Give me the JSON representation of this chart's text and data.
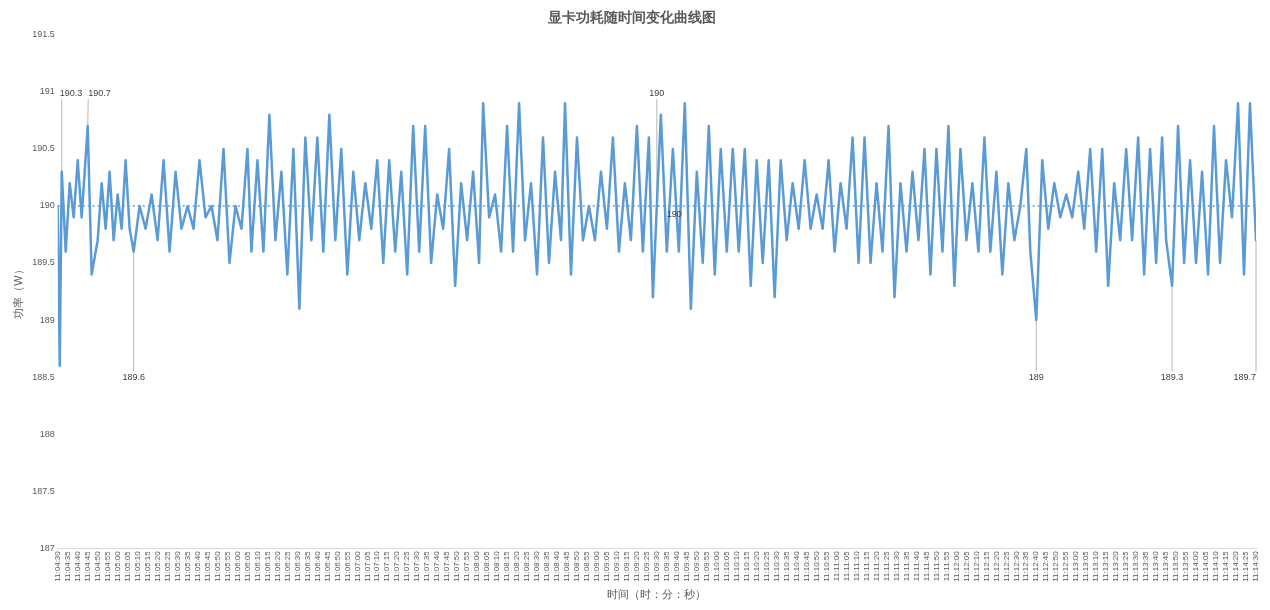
{
  "chart_data": {
    "type": "line",
    "title": "显卡功耗随时间变化曲线图",
    "xlabel": "时间（时：分：秒）",
    "ylabel": "功率（W）",
    "color": "#5b9bd5",
    "marker": "none",
    "line_style": "solid",
    "legend": false,
    "grid": false,
    "x": [
      11.075,
      11.07528,
      11.07556,
      11.07611,
      11.07667,
      11.07722,
      11.07778,
      11.07833,
      11.07917,
      11.07972,
      11.08056,
      11.08111,
      11.08167,
      11.08222,
      11.08278,
      11.08333,
      11.08389,
      11.08444,
      11.085,
      11.08556,
      11.08639,
      11.08722,
      11.08806,
      11.08889,
      11.08972,
      11.09056,
      11.09139,
      11.09222,
      11.09306,
      11.09389,
      11.09472,
      11.09556,
      11.09639,
      11.09722,
      11.09806,
      11.09889,
      11.09972,
      11.10056,
      11.10139,
      11.10194,
      11.10278,
      11.10361,
      11.10444,
      11.10528,
      11.10611,
      11.10694,
      11.10778,
      11.10861,
      11.10944,
      11.11028,
      11.11111,
      11.11194,
      11.11278,
      11.11361,
      11.11444,
      11.11528,
      11.11611,
      11.11694,
      11.11778,
      11.11861,
      11.11944,
      11.12028,
      11.12111,
      11.12194,
      11.12278,
      11.12361,
      11.12444,
      11.12528,
      11.12611,
      11.12694,
      11.12778,
      11.12861,
      11.12944,
      11.13028,
      11.13111,
      11.13194,
      11.13278,
      11.13361,
      11.13417,
      11.135,
      11.13583,
      11.13667,
      11.1375,
      11.13833,
      11.13917,
      11.14,
      11.14083,
      11.14167,
      11.1425,
      11.14333,
      11.14417,
      11.145,
      11.14556,
      11.14639,
      11.14722,
      11.14806,
      11.14889,
      11.14972,
      11.15056,
      11.15139,
      11.15222,
      11.15306,
      11.15389,
      11.15472,
      11.15556,
      11.15639,
      11.15722,
      11.15778,
      11.15833,
      11.15889,
      11.15972,
      11.16056,
      11.16139,
      11.16222,
      11.16306,
      11.16389,
      11.16472,
      11.16556,
      11.16639,
      11.16722,
      11.16806,
      11.16889,
      11.16972,
      11.17056,
      11.17139,
      11.17222,
      11.17306,
      11.17389,
      11.17472,
      11.17556,
      11.17639,
      11.17722,
      11.17806,
      11.17889,
      11.17972,
      11.18056,
      11.18139,
      11.18222,
      11.18306,
      11.18389,
      11.18472,
      11.18556,
      11.18639,
      11.18722,
      11.18806,
      11.18889,
      11.18972,
      11.19056,
      11.19139,
      11.19222,
      11.19306,
      11.19389,
      11.19472,
      11.19556,
      11.19639,
      11.19722,
      11.19806,
      11.19889,
      11.19972,
      11.20056,
      11.20139,
      11.20222,
      11.20306,
      11.20389,
      11.20472,
      11.20556,
      11.20639,
      11.20722,
      11.20806,
      11.20889,
      11.20972,
      11.21028,
      11.21111,
      11.21194,
      11.21278,
      11.21361,
      11.21444,
      11.21528,
      11.21611,
      11.21694,
      11.21778,
      11.21861,
      11.21944,
      11.22028,
      11.22111,
      11.22194,
      11.22278,
      11.22361,
      11.22444,
      11.22528,
      11.22611,
      11.22694,
      11.22778,
      11.22861,
      11.22917,
      11.23,
      11.23083,
      11.23167,
      11.2325,
      11.23333,
      11.23417,
      11.235,
      11.23583,
      11.23667,
      11.2375,
      11.23833,
      11.23917,
      11.24,
      11.24083,
      11.24167
    ],
    "values": [
      190.0,
      188.6,
      190.3,
      189.6,
      190.2,
      189.9,
      190.4,
      189.9,
      190.7,
      189.4,
      189.7,
      190.2,
      189.8,
      190.3,
      189.7,
      190.1,
      189.8,
      190.4,
      189.8,
      189.6,
      190.0,
      189.8,
      190.1,
      189.7,
      190.4,
      189.6,
      190.3,
      189.8,
      190.0,
      189.8,
      190.4,
      189.9,
      190.0,
      189.7,
      190.5,
      189.5,
      190.0,
      189.8,
      190.5,
      189.6,
      190.4,
      189.6,
      190.8,
      189.7,
      190.3,
      189.4,
      190.5,
      189.1,
      190.6,
      189.7,
      190.6,
      189.6,
      190.8,
      189.7,
      190.5,
      189.4,
      190.3,
      189.7,
      190.2,
      189.8,
      190.4,
      189.5,
      190.4,
      189.6,
      190.3,
      189.4,
      190.7,
      189.6,
      190.7,
      189.5,
      190.1,
      189.8,
      190.5,
      189.3,
      190.2,
      189.7,
      190.3,
      189.5,
      190.9,
      189.9,
      190.1,
      189.6,
      190.7,
      189.6,
      190.9,
      189.7,
      190.2,
      189.4,
      190.6,
      189.5,
      190.3,
      189.7,
      190.9,
      189.4,
      190.6,
      189.7,
      190.0,
      189.7,
      190.3,
      189.8,
      190.6,
      189.6,
      190.2,
      189.7,
      190.7,
      189.6,
      190.6,
      189.2,
      190.0,
      190.8,
      189.6,
      190.5,
      189.6,
      190.9,
      189.1,
      190.3,
      189.5,
      190.7,
      189.4,
      190.5,
      189.6,
      190.5,
      189.6,
      190.5,
      189.3,
      190.4,
      189.5,
      190.4,
      189.2,
      190.4,
      189.7,
      190.2,
      189.8,
      190.4,
      189.8,
      190.1,
      189.8,
      190.4,
      189.6,
      190.2,
      189.8,
      190.6,
      189.5,
      190.6,
      189.5,
      190.2,
      189.6,
      190.7,
      189.2,
      190.2,
      189.6,
      190.3,
      189.7,
      190.5,
      189.4,
      190.5,
      189.6,
      190.7,
      189.3,
      190.5,
      189.7,
      190.2,
      189.6,
      190.6,
      189.6,
      190.3,
      189.4,
      190.2,
      189.7,
      190.0,
      190.5,
      189.6,
      189.0,
      190.4,
      189.8,
      190.2,
      189.9,
      190.1,
      189.9,
      190.3,
      189.8,
      190.5,
      189.6,
      190.5,
      189.3,
      190.2,
      189.7,
      190.5,
      189.7,
      190.6,
      189.4,
      190.5,
      189.5,
      190.6,
      189.7,
      189.3,
      190.7,
      189.5,
      190.4,
      189.5,
      190.3,
      189.4,
      190.7,
      189.5,
      190.4,
      189.9,
      190.9,
      189.4,
      190.9,
      189.7
    ],
    "ylim": [
      187,
      191.5
    ],
    "yticks": [
      187,
      187.5,
      188,
      188.5,
      189,
      189.5,
      190,
      190.5,
      191,
      191.5
    ],
    "xlim": [
      11.075,
      11.24167
    ],
    "xticks": [
      {
        "value": 11.075,
        "label": "11:04:30"
      },
      {
        "value": 11.07639,
        "label": "11:04:35"
      },
      {
        "value": 11.07778,
        "label": "11:04:40"
      },
      {
        "value": 11.07917,
        "label": "11:04:45"
      },
      {
        "value": 11.08056,
        "label": "11:04:50"
      },
      {
        "value": 11.08194,
        "label": "11:04:55"
      },
      {
        "value": 11.08333,
        "label": "11:05:00"
      },
      {
        "value": 11.08472,
        "label": "11:05:05"
      },
      {
        "value": 11.08611,
        "label": "11:05:10"
      },
      {
        "value": 11.0875,
        "label": "11:05:15"
      },
      {
        "value": 11.08889,
        "label": "11:05:20"
      },
      {
        "value": 11.09028,
        "label": "11:05:25"
      },
      {
        "value": 11.09167,
        "label": "11:05:30"
      },
      {
        "value": 11.09306,
        "label": "11:05:35"
      },
      {
        "value": 11.09444,
        "label": "11:05:40"
      },
      {
        "value": 11.09583,
        "label": "11:05:45"
      },
      {
        "value": 11.09722,
        "label": "11:05:50"
      },
      {
        "value": 11.09861,
        "label": "11:05:55"
      },
      {
        "value": 11.1,
        "label": "11:06:00"
      },
      {
        "value": 11.10139,
        "label": "11:06:05"
      },
      {
        "value": 11.10278,
        "label": "11:06:10"
      },
      {
        "value": 11.10417,
        "label": "11:06:15"
      },
      {
        "value": 11.10556,
        "label": "11:06:20"
      },
      {
        "value": 11.10694,
        "label": "11:06:25"
      },
      {
        "value": 11.10833,
        "label": "11:06:30"
      },
      {
        "value": 11.10972,
        "label": "11:06:35"
      },
      {
        "value": 11.11111,
        "label": "11:06:40"
      },
      {
        "value": 11.1125,
        "label": "11:06:45"
      },
      {
        "value": 11.11389,
        "label": "11:06:50"
      },
      {
        "value": 11.11528,
        "label": "11:06:55"
      },
      {
        "value": 11.11667,
        "label": "11:07:00"
      },
      {
        "value": 11.11806,
        "label": "11:07:05"
      },
      {
        "value": 11.11944,
        "label": "11:07:10"
      },
      {
        "value": 11.12083,
        "label": "11:07:15"
      },
      {
        "value": 11.12222,
        "label": "11:07:20"
      },
      {
        "value": 11.12361,
        "label": "11:07:25"
      },
      {
        "value": 11.125,
        "label": "11:07:30"
      },
      {
        "value": 11.12639,
        "label": "11:07:35"
      },
      {
        "value": 11.12778,
        "label": "11:07:40"
      },
      {
        "value": 11.12917,
        "label": "11:07:45"
      },
      {
        "value": 11.13056,
        "label": "11:07:50"
      },
      {
        "value": 11.13194,
        "label": "11:07:55"
      },
      {
        "value": 11.13333,
        "label": "11:08:00"
      },
      {
        "value": 11.13472,
        "label": "11:08:05"
      },
      {
        "value": 11.13611,
        "label": "11:08:10"
      },
      {
        "value": 11.1375,
        "label": "11:08:15"
      },
      {
        "value": 11.13889,
        "label": "11:08:20"
      },
      {
        "value": 11.14028,
        "label": "11:08:25"
      },
      {
        "value": 11.14167,
        "label": "11:08:30"
      },
      {
        "value": 11.14306,
        "label": "11:08:35"
      },
      {
        "value": 11.14444,
        "label": "11:08:40"
      },
      {
        "value": 11.14583,
        "label": "11:08:45"
      },
      {
        "value": 11.14722,
        "label": "11:08:50"
      },
      {
        "value": 11.14861,
        "label": "11:08:55"
      },
      {
        "value": 11.15,
        "label": "11:09:00"
      },
      {
        "value": 11.15139,
        "label": "11:09:05"
      },
      {
        "value": 11.15278,
        "label": "11:09:10"
      },
      {
        "value": 11.15417,
        "label": "11:09:15"
      },
      {
        "value": 11.15556,
        "label": "11:09:20"
      },
      {
        "value": 11.15694,
        "label": "11:09:25"
      },
      {
        "value": 11.15833,
        "label": "11:09:30"
      },
      {
        "value": 11.15972,
        "label": "11:09:35"
      },
      {
        "value": 11.16111,
        "label": "11:09:40"
      },
      {
        "value": 11.1625,
        "label": "11:09:45"
      },
      {
        "value": 11.16389,
        "label": "11:09:50"
      },
      {
        "value": 11.16528,
        "label": "11:09:55"
      },
      {
        "value": 11.16667,
        "label": "11:10:00"
      },
      {
        "value": 11.16806,
        "label": "11:10:05"
      },
      {
        "value": 11.16944,
        "label": "11:10:10"
      },
      {
        "value": 11.17083,
        "label": "11:10:15"
      },
      {
        "value": 11.17222,
        "label": "11:10:20"
      },
      {
        "value": 11.17361,
        "label": "11:10:25"
      },
      {
        "value": 11.175,
        "label": "11:10:30"
      },
      {
        "value": 11.17639,
        "label": "11:10:35"
      },
      {
        "value": 11.17778,
        "label": "11:10:40"
      },
      {
        "value": 11.17917,
        "label": "11:10:45"
      },
      {
        "value": 11.18056,
        "label": "11:10:50"
      },
      {
        "value": 11.18194,
        "label": "11:10:55"
      },
      {
        "value": 11.18333,
        "label": "11:11:00"
      },
      {
        "value": 11.18472,
        "label": "11:11:05"
      },
      {
        "value": 11.18611,
        "label": "11:11:10"
      },
      {
        "value": 11.1875,
        "label": "11:11:15"
      },
      {
        "value": 11.18889,
        "label": "11:11:20"
      },
      {
        "value": 11.19028,
        "label": "11:11:25"
      },
      {
        "value": 11.19167,
        "label": "11:11:30"
      },
      {
        "value": 11.19306,
        "label": "11:11:35"
      },
      {
        "value": 11.19444,
        "label": "11:11:40"
      },
      {
        "value": 11.19583,
        "label": "11:11:45"
      },
      {
        "value": 11.19722,
        "label": "11:11:50"
      },
      {
        "value": 11.19861,
        "label": "11:11:55"
      },
      {
        "value": 11.2,
        "label": "11:12:00"
      },
      {
        "value": 11.20139,
        "label": "11:12:05"
      },
      {
        "value": 11.20278,
        "label": "11:12:10"
      },
      {
        "value": 11.20417,
        "label": "11:12:15"
      },
      {
        "value": 11.20556,
        "label": "11:12:20"
      },
      {
        "value": 11.20694,
        "label": "11:12:25"
      },
      {
        "value": 11.20833,
        "label": "11:12:30"
      },
      {
        "value": 11.20972,
        "label": "11:12:35"
      },
      {
        "value": 11.21111,
        "label": "11:12:40"
      },
      {
        "value": 11.2125,
        "label": "11:12:45"
      },
      {
        "value": 11.21389,
        "label": "11:12:50"
      },
      {
        "value": 11.21528,
        "label": "11:12:55"
      },
      {
        "value": 11.21667,
        "label": "11:13:00"
      },
      {
        "value": 11.21806,
        "label": "11:13:05"
      },
      {
        "value": 11.21944,
        "label": "11:13:10"
      },
      {
        "value": 11.22083,
        "label": "11:13:15"
      },
      {
        "value": 11.22222,
        "label": "11:13:20"
      },
      {
        "value": 11.22361,
        "label": "11:13:25"
      },
      {
        "value": 11.225,
        "label": "11:13:30"
      },
      {
        "value": 11.22639,
        "label": "11:13:35"
      },
      {
        "value": 11.22778,
        "label": "11:13:40"
      },
      {
        "value": 11.22917,
        "label": "11:13:45"
      },
      {
        "value": 11.23056,
        "label": "11:13:50"
      },
      {
        "value": 11.23194,
        "label": "11:13:55"
      },
      {
        "value": 11.23333,
        "label": "11:14:00"
      },
      {
        "value": 11.23472,
        "label": "11:14:05"
      },
      {
        "value": 11.23611,
        "label": "11:14:10"
      },
      {
        "value": 11.2375,
        "label": "11:14:15"
      },
      {
        "value": 11.23889,
        "label": "11:14:20"
      },
      {
        "value": 11.24028,
        "label": "11:14:25"
      },
      {
        "value": 11.24167,
        "label": "11:14:30"
      }
    ],
    "ref_lines": [
      {
        "axis": "y",
        "value": 190,
        "label": "190",
        "color": "#5b9bd5",
        "line_style": "dotted"
      }
    ],
    "annotations": [
      {
        "text": "190.3",
        "x": 11.07556,
        "y": 190.3
      },
      {
        "text": "190.7",
        "x": 11.07917,
        "y": 190.7
      },
      {
        "text": "189.6",
        "x": 11.08556,
        "y": 189.6
      },
      {
        "text": "190",
        "x": 11.15833,
        "y": 190.0
      },
      {
        "text": "189",
        "x": 11.21111,
        "y": 189.0
      },
      {
        "text": "189.3",
        "x": 11.23,
        "y": 189.3
      },
      {
        "text": "189.7",
        "x": 11.24167,
        "y": 189.7
      }
    ]
  }
}
